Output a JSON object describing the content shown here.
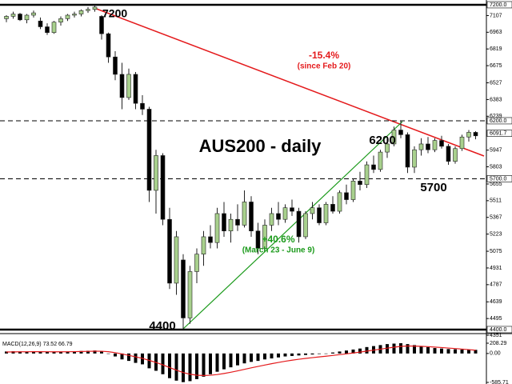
{
  "chart_data": [
    {
      "type": "candlestick",
      "title": "AUS200 - daily",
      "bull_color": "#a8d08d",
      "bear_color": "#000000",
      "wick_color": "#222222",
      "ylim": [
        4310,
        7241
      ],
      "yticks": [
        7107,
        6963,
        6819,
        6675,
        6527,
        6383,
        6239,
        5947,
        5803,
        5655,
        5511,
        5367,
        5223,
        5075,
        4931,
        4787,
        4639,
        4495,
        4351
      ],
      "levels": [
        {
          "value": 7200,
          "label": "7200.0",
          "style": "solid"
        },
        {
          "value": 6200,
          "label": "6200.0",
          "style": "dashed"
        },
        {
          "value": 5700,
          "label": "5700.0",
          "style": "dashed"
        },
        {
          "value": 4400,
          "label": "4400.0",
          "style": "solid"
        }
      ],
      "current_price": 6091.7,
      "annotations": [
        {
          "text": "7200",
          "color": "#000000"
        },
        {
          "text": "-15.4%",
          "color": "#e41a1c"
        },
        {
          "text": "(since Feb 20)",
          "color": "#e41a1c"
        },
        {
          "text": "6200",
          "color": "#000000"
        },
        {
          "text": "5700",
          "color": "#000000"
        },
        {
          "text": "+40.6%",
          "color": "#1a9a1a"
        },
        {
          "text": "(March 23 - June 9)",
          "color": "#1a9a1a"
        },
        {
          "text": "4400",
          "color": "#000000"
        }
      ],
      "ohlc": [
        [
          7080,
          7110,
          7050,
          7100
        ],
        [
          7100,
          7140,
          7080,
          7120
        ],
        [
          7120,
          7130,
          7060,
          7070
        ],
        [
          7070,
          7120,
          7040,
          7110
        ],
        [
          7110,
          7150,
          7090,
          7130
        ],
        [
          7060,
          7090,
          6990,
          7010
        ],
        [
          7010,
          7040,
          6940,
          6960
        ],
        [
          6960,
          7060,
          6950,
          7050
        ],
        [
          7050,
          7100,
          7020,
          7080
        ],
        [
          7080,
          7120,
          7060,
          7110
        ],
        [
          7110,
          7140,
          7090,
          7120
        ],
        [
          7120,
          7160,
          7100,
          7150
        ],
        [
          7150,
          7180,
          7130,
          7160
        ],
        [
          7160,
          7200,
          7140,
          7180
        ],
        [
          7100,
          7110,
          6900,
          6950
        ],
        [
          6950,
          6960,
          6700,
          6750
        ],
        [
          6750,
          6800,
          6550,
          6600
        ],
        [
          6600,
          6700,
          6300,
          6400
        ],
        [
          6400,
          6650,
          6380,
          6600
        ],
        [
          6600,
          6620,
          6300,
          6350
        ],
        [
          6350,
          6420,
          6250,
          6300
        ],
        [
          6300,
          6320,
          5500,
          5600
        ],
        [
          5600,
          5950,
          5400,
          5900
        ],
        [
          5900,
          5920,
          5300,
          5350
        ],
        [
          5350,
          5450,
          4750,
          4800
        ],
        [
          4800,
          5250,
          4700,
          5200
        ],
        [
          5000,
          5050,
          4400,
          4500
        ],
        [
          4500,
          4950,
          4450,
          4900
        ],
        [
          4900,
          5100,
          4800,
          5050
        ],
        [
          5050,
          5250,
          4950,
          5200
        ],
        [
          5200,
          5300,
          5100,
          5150
        ],
        [
          5150,
          5450,
          5100,
          5400
        ],
        [
          5400,
          5500,
          5200,
          5250
        ],
        [
          5250,
          5400,
          5150,
          5350
        ],
        [
          5350,
          5480,
          5250,
          5300
        ],
        [
          5300,
          5600,
          5280,
          5500
        ],
        [
          5500,
          5550,
          5200,
          5250
        ],
        [
          5250,
          5320,
          5050,
          5100
        ],
        [
          5100,
          5350,
          5080,
          5300
        ],
        [
          5300,
          5450,
          5250,
          5400
        ],
        [
          5400,
          5500,
          5300,
          5350
        ],
        [
          5350,
          5480,
          5320,
          5450
        ],
        [
          5450,
          5520,
          5380,
          5420
        ],
        [
          5420,
          5450,
          5150,
          5200
        ],
        [
          5200,
          5420,
          5180,
          5400
        ],
        [
          5400,
          5500,
          5350,
          5450
        ],
        [
          5450,
          5480,
          5300,
          5320
        ],
        [
          5320,
          5500,
          5300,
          5480
        ],
        [
          5480,
          5550,
          5400,
          5420
        ],
        [
          5420,
          5600,
          5400,
          5580
        ],
        [
          5580,
          5650,
          5480,
          5520
        ],
        [
          5520,
          5700,
          5500,
          5680
        ],
        [
          5680,
          5760,
          5600,
          5650
        ],
        [
          5650,
          5850,
          5620,
          5820
        ],
        [
          5820,
          5900,
          5750,
          5780
        ],
        [
          5780,
          5950,
          5760,
          5930
        ],
        [
          5930,
          6050,
          5880,
          6000
        ],
        [
          6000,
          6150,
          5980,
          6120
        ],
        [
          6120,
          6200,
          6050,
          6080
        ],
        [
          6080,
          6100,
          5750,
          5800
        ],
        [
          5800,
          5980,
          5750,
          5950
        ],
        [
          5950,
          6050,
          5900,
          6000
        ],
        [
          6000,
          6060,
          5920,
          5950
        ],
        [
          5950,
          6050,
          5930,
          6030
        ],
        [
          6030,
          6070,
          5960,
          5980
        ],
        [
          5980,
          6000,
          5820,
          5850
        ],
        [
          5850,
          5980,
          5830,
          5960
        ],
        [
          5960,
          6080,
          5940,
          6060
        ],
        [
          6060,
          6120,
          6020,
          6100
        ],
        [
          6100,
          6110,
          6040,
          6070
        ]
      ]
    },
    {
      "type": "macd",
      "label": "MACD(12,26,9) 73.52 66.79",
      "ylim": [
        -585.71,
        208.29
      ],
      "yticks": [
        208.29,
        {
          "value": 0,
          "label": "0.00"
        },
        -585.71
      ],
      "series": [
        {
          "name": "MACD",
          "color": "#000000",
          "values": [
            40,
            45,
            40,
            35,
            40,
            35,
            30,
            30,
            35,
            40,
            45,
            50,
            55,
            60,
            40,
            0,
            -60,
            -120,
            -150,
            -190,
            -220,
            -300,
            -350,
            -420,
            -500,
            -550,
            -580,
            -560,
            -520,
            -470,
            -420,
            -370,
            -320,
            -280,
            -240,
            -200,
            -170,
            -150,
            -120,
            -100,
            -80,
            -60,
            -50,
            -40,
            -30,
            -20,
            -10,
            0,
            20,
            40,
            60,
            80,
            100,
            130,
            150,
            170,
            190,
            200,
            208,
            190,
            170,
            150,
            130,
            110,
            100,
            90,
            85,
            80,
            75,
            73.52
          ]
        },
        {
          "name": "Signal",
          "color": "#e41a1c",
          "values": [
            30,
            32,
            34,
            35,
            36,
            36,
            35,
            34,
            34,
            35,
            37,
            40,
            43,
            46,
            45,
            36,
            17,
            -10,
            -38,
            -68,
            -98,
            -140,
            -182,
            -230,
            -284,
            -337,
            -386,
            -420,
            -440,
            -446,
            -441,
            -427,
            -405,
            -380,
            -352,
            -322,
            -291,
            -263,
            -234,
            -207,
            -182,
            -157,
            -136,
            -117,
            -100,
            -84,
            -69,
            -55,
            -40,
            -24,
            -7,
            10,
            28,
            48,
            68,
            88,
            108,
            127,
            143,
            152,
            150,
            145,
            138,
            129,
            120,
            110,
            100,
            90,
            78,
            66.79
          ]
        }
      ]
    }
  ]
}
